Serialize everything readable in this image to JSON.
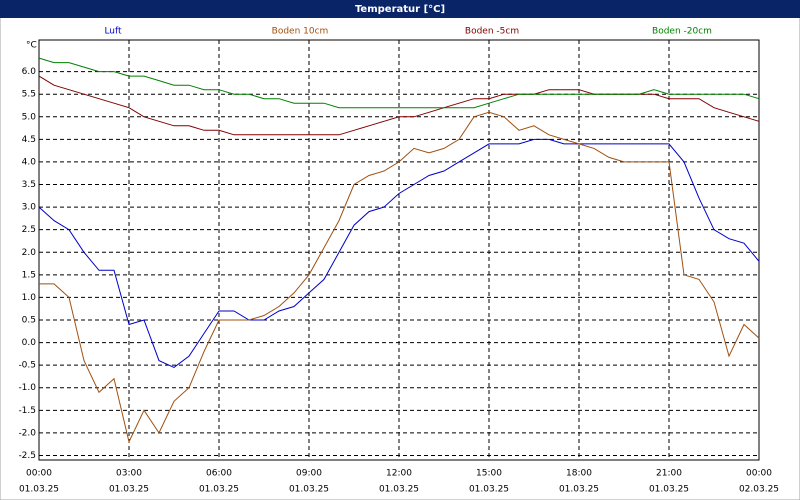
{
  "chart_data": {
    "type": "line",
    "title": "Temperatur [°C]",
    "y_label": "°C",
    "x": [
      0,
      0.5,
      1,
      1.5,
      2,
      2.5,
      3,
      3.5,
      4,
      4.5,
      5,
      5.5,
      6,
      6.5,
      7,
      7.5,
      8,
      8.5,
      9,
      9.5,
      10,
      10.5,
      11,
      11.5,
      12,
      12.5,
      13,
      13.5,
      14,
      14.5,
      15,
      15.5,
      16,
      16.5,
      17,
      17.5,
      18,
      18.5,
      19,
      19.5,
      20,
      20.5,
      21,
      21.5,
      22,
      22.5,
      23,
      23.5,
      24
    ],
    "series": [
      {
        "name": "Luft",
        "color": "#0000c8",
        "values": [
          3.0,
          2.7,
          2.5,
          2.0,
          1.6,
          1.6,
          0.4,
          0.5,
          -0.4,
          -0.55,
          -0.3,
          0.2,
          0.7,
          0.7,
          0.5,
          0.5,
          0.7,
          0.8,
          1.1,
          1.4,
          2.0,
          2.6,
          2.9,
          3.0,
          3.3,
          3.5,
          3.7,
          3.8,
          4.0,
          4.2,
          4.4,
          4.4,
          4.4,
          4.5,
          4.5,
          4.4,
          4.4,
          4.4,
          4.4,
          4.4,
          4.4,
          4.4,
          4.4,
          4.0,
          3.2,
          2.5,
          2.3,
          2.2,
          1.8
        ]
      },
      {
        "name": "Boden 10cm",
        "color": "#a05010",
        "values": [
          1.3,
          1.3,
          1.0,
          -0.4,
          -1.1,
          -0.8,
          -2.2,
          -1.5,
          -2.0,
          -1.3,
          -1.0,
          -0.2,
          0.5,
          0.5,
          0.5,
          0.6,
          0.8,
          1.1,
          1.5,
          2.1,
          2.7,
          3.5,
          3.7,
          3.8,
          4.0,
          4.3,
          4.2,
          4.3,
          4.5,
          5.0,
          5.1,
          5.0,
          4.7,
          4.8,
          4.6,
          4.5,
          4.4,
          4.3,
          4.1,
          4.0,
          4.0,
          4.0,
          4.0,
          1.5,
          1.4,
          0.9,
          -0.3,
          0.4,
          0.1
        ]
      },
      {
        "name": "Boden -5cm",
        "color": "#800000",
        "values": [
          5.9,
          5.7,
          5.6,
          5.5,
          5.4,
          5.3,
          5.2,
          5.0,
          4.9,
          4.8,
          4.8,
          4.7,
          4.7,
          4.6,
          4.6,
          4.6,
          4.6,
          4.6,
          4.6,
          4.6,
          4.6,
          4.7,
          4.8,
          4.9,
          5.0,
          5.0,
          5.1,
          5.2,
          5.3,
          5.4,
          5.4,
          5.5,
          5.5,
          5.5,
          5.6,
          5.6,
          5.6,
          5.5,
          5.5,
          5.5,
          5.5,
          5.5,
          5.4,
          5.4,
          5.4,
          5.2,
          5.1,
          5.0,
          4.9
        ]
      },
      {
        "name": "Boden -20cm",
        "color": "#008000",
        "values": [
          6.3,
          6.2,
          6.2,
          6.1,
          6.0,
          6.0,
          5.9,
          5.9,
          5.8,
          5.7,
          5.7,
          5.6,
          5.6,
          5.5,
          5.5,
          5.4,
          5.4,
          5.3,
          5.3,
          5.3,
          5.2,
          5.2,
          5.2,
          5.2,
          5.2,
          5.2,
          5.2,
          5.2,
          5.2,
          5.2,
          5.3,
          5.4,
          5.5,
          5.5,
          5.5,
          5.5,
          5.5,
          5.5,
          5.5,
          5.5,
          5.5,
          5.6,
          5.5,
          5.5,
          5.5,
          5.5,
          5.5,
          5.5,
          5.4
        ]
      }
    ],
    "xlim": [
      0,
      24
    ],
    "xticks": [
      {
        "value": 0,
        "label": "00:00"
      },
      {
        "value": 3,
        "label": "03:00"
      },
      {
        "value": 6,
        "label": "06:00"
      },
      {
        "value": 9,
        "label": "09:00"
      },
      {
        "value": 12,
        "label": "12:00"
      },
      {
        "value": 15,
        "label": "15:00"
      },
      {
        "value": 18,
        "label": "18:00"
      },
      {
        "value": 21,
        "label": "21:00"
      },
      {
        "value": 24,
        "label": "00:00"
      }
    ],
    "xtick_dates": [
      "01.03.25",
      "01.03.25",
      "01.03.25",
      "01.03.25",
      "01.03.25",
      "01.03.25",
      "01.03.25",
      "01.03.25",
      "02.03.25"
    ],
    "ylim": [
      -2.6,
      6.7
    ],
    "yticks": [
      {
        "value": 6,
        "label": "6.0"
      },
      {
        "value": 5.5,
        "label": "5.5"
      },
      {
        "value": 5,
        "label": "5.0"
      },
      {
        "value": 4.5,
        "label": "4.5"
      },
      {
        "value": 4,
        "label": "4.0"
      },
      {
        "value": 3.5,
        "label": "3.5"
      },
      {
        "value": 3,
        "label": "3.0"
      },
      {
        "value": 2.5,
        "label": "2.5"
      },
      {
        "value": 2,
        "label": "2.0"
      },
      {
        "value": 1.5,
        "label": "1.5"
      },
      {
        "value": 1,
        "label": "1.0"
      },
      {
        "value": 0.5,
        "label": "0.5"
      },
      {
        "value": 0,
        "label": "0.0"
      },
      {
        "value": -0.5,
        "label": "-0.5"
      },
      {
        "value": -1,
        "label": "-1.0"
      },
      {
        "value": -1.5,
        "label": "-1.5"
      },
      {
        "value": -2,
        "label": "-2.0"
      },
      {
        "value": -2.5,
        "label": "-2.5"
      }
    ],
    "grid": true
  }
}
